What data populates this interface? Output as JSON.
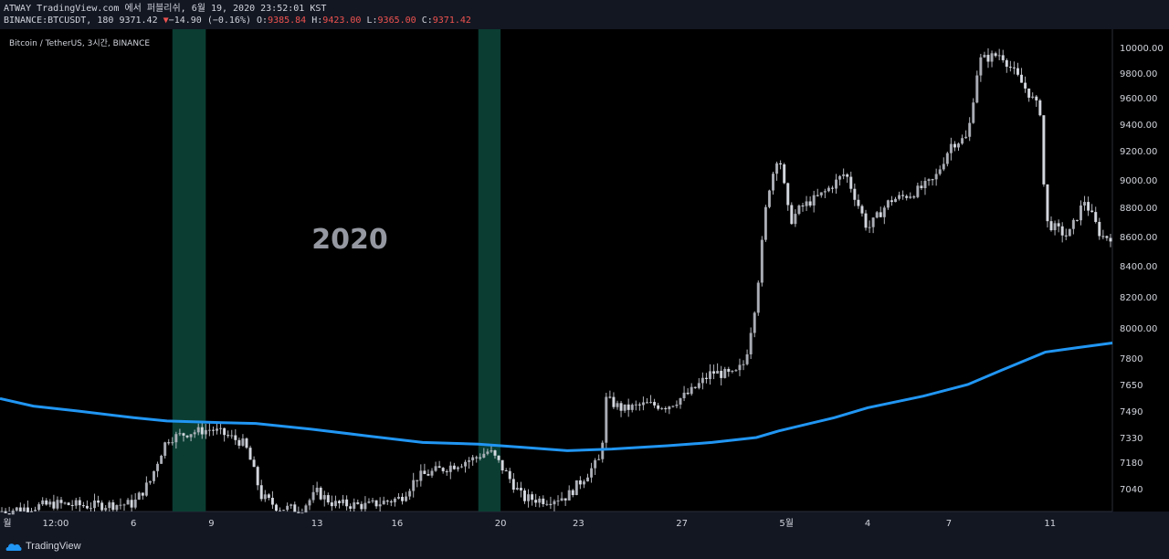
{
  "header": {
    "publish_line": "ATWAY TradingView.com 에서 퍼블리쉬, 6월 19, 2020 23:52:01 KST",
    "symbol": "BINANCE:BTCUSDT, 180",
    "last": "9371.42",
    "change": "−14.90 (−0.16%)",
    "o_label": "O:",
    "o_value": "9385.84",
    "h_label": "H:",
    "h_value": "9423.00",
    "l_label": "L:",
    "l_value": "9365.00",
    "c_label": "C:",
    "c_value": "9371.42"
  },
  "chart_title": "Bitcoin / TetherUS, 3시간, BINANCE",
  "watermark": "2020",
  "footer": {
    "brand": "TradingView"
  },
  "colors": {
    "background": "#000000",
    "candles": "#d1d4dc",
    "ma_line": "#2196f3",
    "highlight": "#0b3d33",
    "panel": "#131722"
  },
  "chart_data": {
    "type": "candlestick",
    "y_scale": "nonlinear (price axis ticks as printed)",
    "ylim": [
      6920,
      10120
    ],
    "y_ticks": [
      7040,
      7180,
      7330,
      7490,
      7650,
      7800,
      8000,
      8200,
      8400,
      8600,
      8800,
      9000,
      9200,
      9400,
      9600,
      9800,
      10000
    ],
    "y_tick_labels": [
      "7040",
      "7180",
      "7330",
      "7490",
      "7650",
      "7800",
      "8000.00",
      "8200.00",
      "8400.00",
      "8600.00",
      "8800.00",
      "9000.00",
      "9200.00",
      "9400.00",
      "9600.00",
      "9800.00",
      "10000.00"
    ],
    "x_tick_labels": [
      "월",
      "12:00",
      "6",
      "9",
      "13",
      "16",
      "20",
      "23",
      "27",
      "5월",
      "4",
      "7",
      "11"
    ],
    "x_tick_positions": [
      0.0,
      0.05,
      0.12,
      0.19,
      0.285,
      0.357,
      0.45,
      0.52,
      0.613,
      0.707,
      0.78,
      0.853,
      0.944
    ],
    "price_path": [
      [
        0.0,
        6920
      ],
      [
        0.05,
        6960
      ],
      [
        0.08,
        6950
      ],
      [
        0.12,
        6960
      ],
      [
        0.135,
        7080
      ],
      [
        0.15,
        7320
      ],
      [
        0.17,
        7360
      ],
      [
        0.19,
        7380
      ],
      [
        0.205,
        7340
      ],
      [
        0.22,
        7290
      ],
      [
        0.235,
        7000
      ],
      [
        0.25,
        6940
      ],
      [
        0.27,
        6930
      ],
      [
        0.285,
        7020
      ],
      [
        0.3,
        6960
      ],
      [
        0.33,
        6950
      ],
      [
        0.36,
        6990
      ],
      [
        0.375,
        7100
      ],
      [
        0.4,
        7150
      ],
      [
        0.425,
        7200
      ],
      [
        0.44,
        7250
      ],
      [
        0.455,
        7120
      ],
      [
        0.47,
        6990
      ],
      [
        0.49,
        6980
      ],
      [
        0.51,
        7000
      ],
      [
        0.525,
        7100
      ],
      [
        0.54,
        7200
      ],
      [
        0.545,
        7560
      ],
      [
        0.56,
        7500
      ],
      [
        0.58,
        7530
      ],
      [
        0.6,
        7520
      ],
      [
        0.62,
        7600
      ],
      [
        0.64,
        7720
      ],
      [
        0.66,
        7700
      ],
      [
        0.67,
        7780
      ],
      [
        0.68,
        8200
      ],
      [
        0.69,
        8900
      ],
      [
        0.7,
        9200
      ],
      [
        0.71,
        8700
      ],
      [
        0.72,
        8800
      ],
      [
        0.74,
        8900
      ],
      [
        0.76,
        9050
      ],
      [
        0.78,
        8650
      ],
      [
        0.8,
        8850
      ],
      [
        0.82,
        8900
      ],
      [
        0.84,
        9000
      ],
      [
        0.855,
        9250
      ],
      [
        0.87,
        9300
      ],
      [
        0.88,
        9900
      ],
      [
        0.9,
        9950
      ],
      [
        0.92,
        9700
      ],
      [
        0.935,
        9500
      ],
      [
        0.94,
        8700
      ],
      [
        0.96,
        8600
      ],
      [
        0.975,
        8850
      ],
      [
        0.99,
        8600
      ]
    ],
    "series": [
      {
        "name": "",
        "type": "line",
        "color": "#2196f3",
        "points": [
          [
            0.0,
            7565
          ],
          [
            0.03,
            7520
          ],
          [
            0.07,
            7490
          ],
          [
            0.12,
            7450
          ],
          [
            0.15,
            7430
          ],
          [
            0.2,
            7420
          ],
          [
            0.23,
            7415
          ],
          [
            0.28,
            7380
          ],
          [
            0.33,
            7340
          ],
          [
            0.38,
            7300
          ],
          [
            0.43,
            7290
          ],
          [
            0.47,
            7270
          ],
          [
            0.51,
            7250
          ],
          [
            0.55,
            7260
          ],
          [
            0.6,
            7280
          ],
          [
            0.64,
            7300
          ],
          [
            0.68,
            7330
          ],
          [
            0.7,
            7370
          ],
          [
            0.75,
            7450
          ],
          [
            0.78,
            7510
          ],
          [
            0.83,
            7580
          ],
          [
            0.87,
            7650
          ],
          [
            0.9,
            7730
          ],
          [
            0.94,
            7840
          ],
          [
            0.97,
            7870
          ],
          [
            1.0,
            7900
          ]
        ]
      }
    ],
    "highlight_bands": [
      [
        0.155,
        0.185
      ],
      [
        0.43,
        0.45
      ]
    ]
  }
}
